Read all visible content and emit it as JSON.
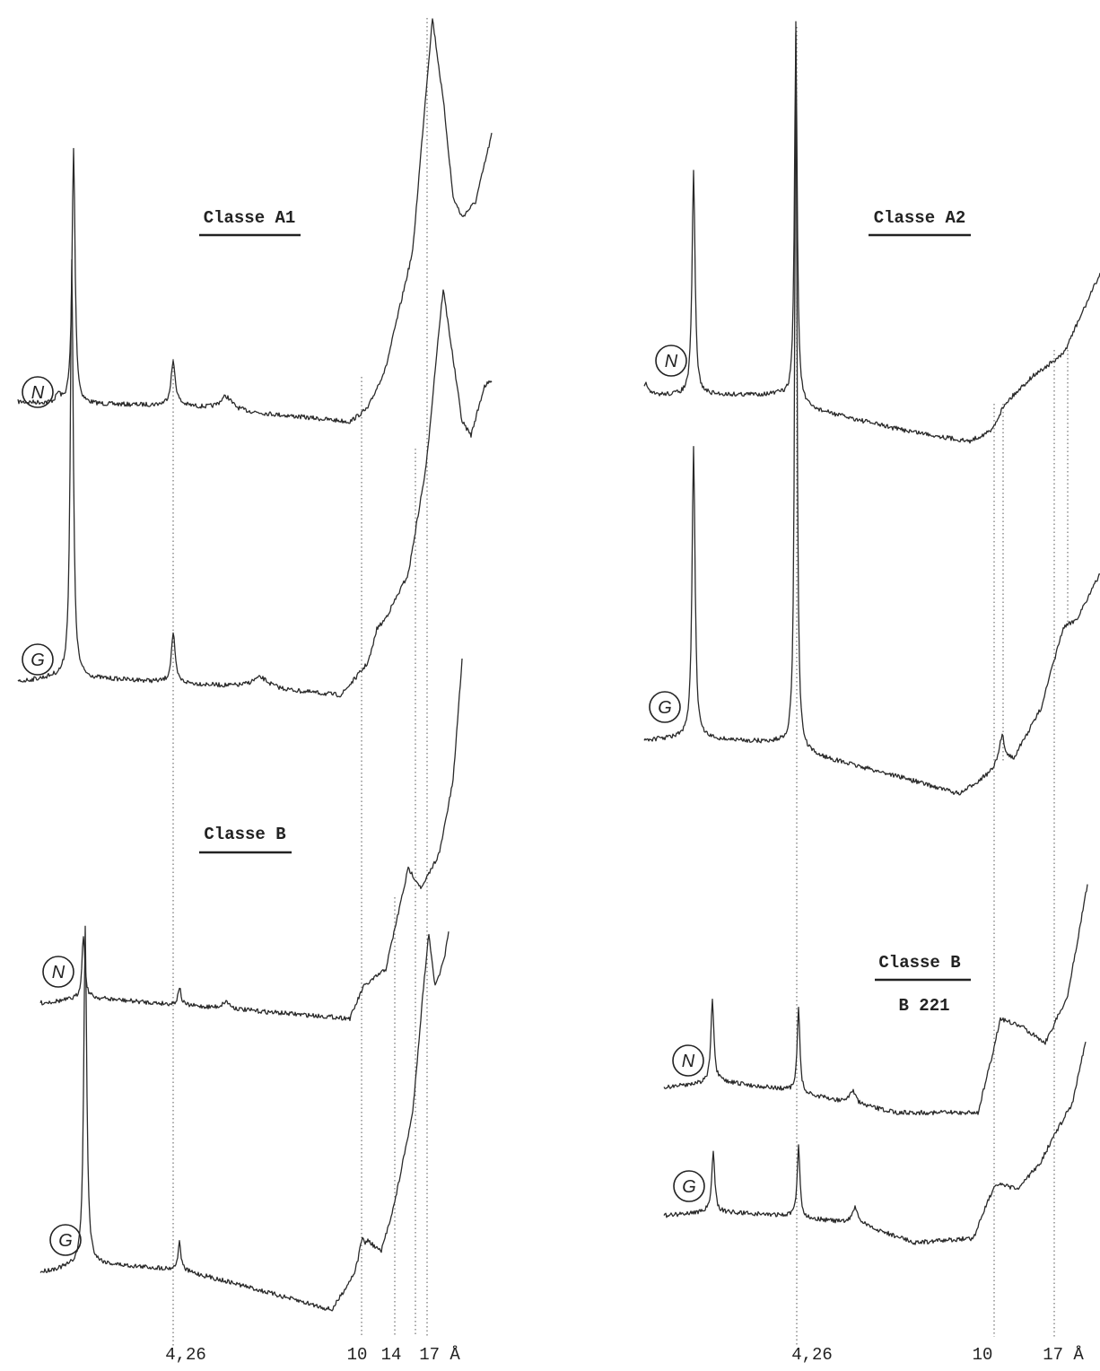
{
  "panels": [
    {
      "title": "Classe A1",
      "traces": [
        "N",
        "G"
      ]
    },
    {
      "title": "Classe B",
      "traces": [
        "N",
        "G"
      ]
    },
    {
      "title": "Classe A2",
      "traces": [
        "N",
        "G"
      ]
    },
    {
      "title": "Classe B",
      "subtitle": "B 221",
      "traces": [
        "N",
        "G"
      ]
    }
  ],
  "axis_labels": {
    "left": [
      "4,26",
      "10",
      "14",
      "17 Å"
    ],
    "right": [
      "4,26",
      "10",
      "17 Å"
    ]
  }
}
